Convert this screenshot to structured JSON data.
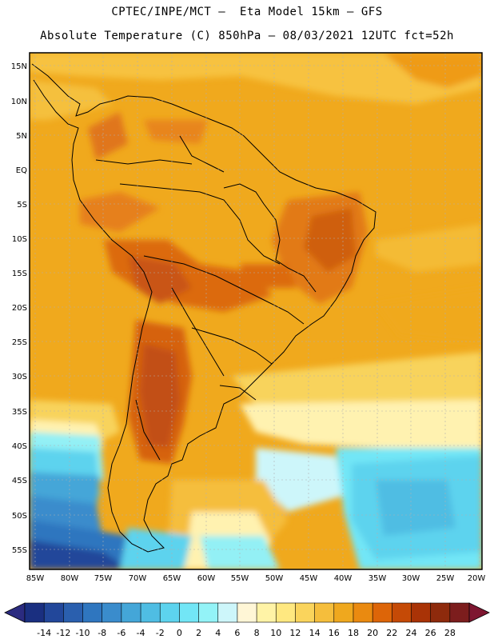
{
  "header": {
    "line1": "CPTEC/INPE/MCT –  Eta Model 15km – GFS",
    "line2": "Absolute Temperature (C) 850hPa – 08/03/2021 12UTC fct=52h"
  },
  "map": {
    "lat_labels": [
      "15N",
      "10N",
      "5N",
      "EQ",
      "5S",
      "10S",
      "15S",
      "20S",
      "25S",
      "30S",
      "35S",
      "40S",
      "45S",
      "50S",
      "55S"
    ],
    "lon_labels": [
      "85W",
      "80W",
      "75W",
      "70W",
      "65W",
      "60W",
      "55W",
      "50W",
      "45W",
      "40W",
      "35W",
      "30W",
      "25W",
      "20W"
    ]
  },
  "colorbar": {
    "labels": [
      "-14",
      "-12",
      "-10",
      "-8",
      "-6",
      "-4",
      "-2",
      "0",
      "2",
      "4",
      "6",
      "8",
      "10",
      "12",
      "14",
      "16",
      "18",
      "20",
      "22",
      "24",
      "26",
      "28"
    ],
    "colors": [
      "#1a2f80",
      "#22479a",
      "#2a5fae",
      "#2f76bf",
      "#3a8ccc",
      "#44a6d8",
      "#4fbde3",
      "#5dd3ee",
      "#72e6f6",
      "#93f3f7",
      "#cdf6fa",
      "#fff6d6",
      "#fff3a6",
      "#ffe880",
      "#fad45c",
      "#f5be3c",
      "#efa81e",
      "#ea8a10",
      "#dd6508",
      "#c54a06",
      "#a93306",
      "#8e2a0c",
      "#7c1d1d"
    ],
    "low_arrow_color": "#2b2b80",
    "high_arrow_color": "#7e1630"
  }
}
